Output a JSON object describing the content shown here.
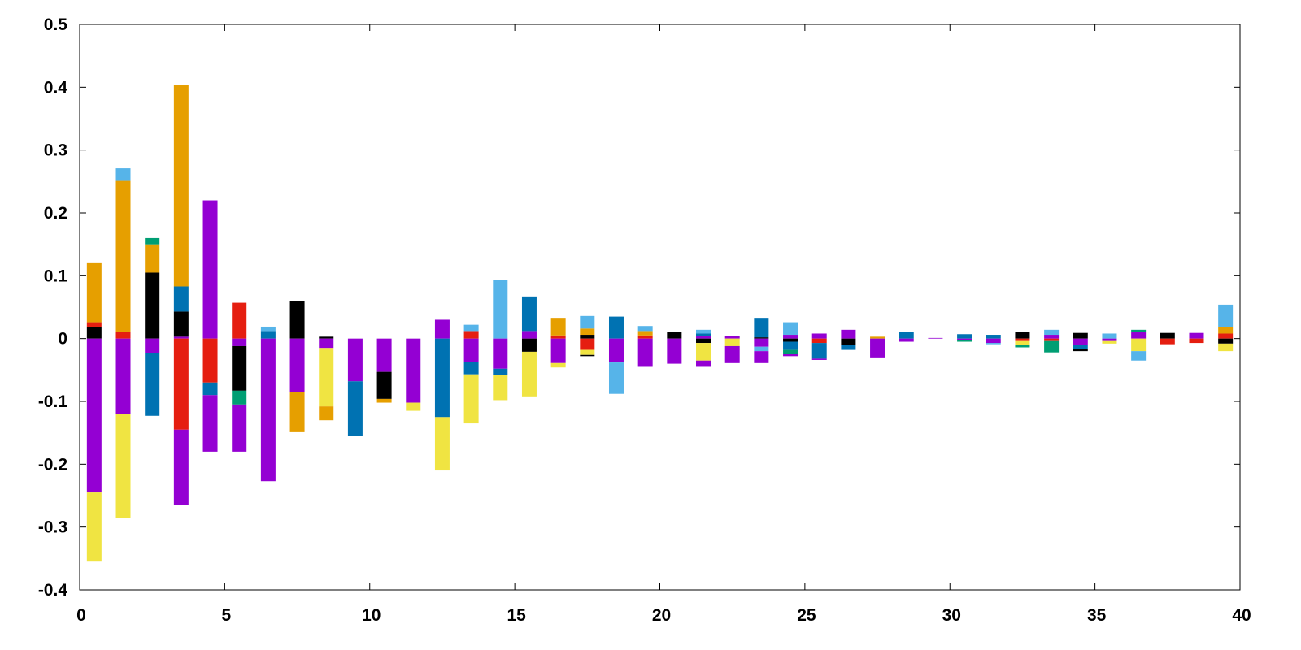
{
  "chart_data": {
    "type": "bar",
    "stacked": true,
    "diverging": true,
    "title": "",
    "xlabel": "",
    "ylabel": "",
    "xlim": [
      0,
      40
    ],
    "ylim": [
      -0.4,
      0.5
    ],
    "xticks": [
      "0",
      "5",
      "10",
      "15",
      "20",
      "25",
      "30",
      "35",
      "40"
    ],
    "yticks": [
      "-0.4",
      "-0.3",
      "-0.2",
      "-0.1",
      "0",
      "0.1",
      "0.2",
      "0.3",
      "0.4",
      "0.5"
    ],
    "grid": false,
    "legend": "none",
    "palette": {
      "purple": "#9400d3",
      "black": "#000000",
      "red": "#e51e10",
      "orange": "#e69f00",
      "blue": "#0072b2",
      "skyblue": "#56b4e9",
      "green": "#009e73",
      "yellow": "#f0e442"
    },
    "bars": [
      {
        "x": 0,
        "pos": [
          [
            "black",
            0.018
          ],
          [
            "red",
            0.008
          ],
          [
            "orange",
            0.094
          ]
        ],
        "neg": [
          [
            "purple",
            -0.245
          ],
          [
            "yellow",
            -0.11
          ]
        ]
      },
      {
        "x": 1,
        "pos": [
          [
            "red",
            0.01
          ],
          [
            "orange",
            0.241
          ],
          [
            "skyblue",
            0.02
          ]
        ],
        "neg": [
          [
            "purple",
            -0.12
          ],
          [
            "yellow",
            -0.165
          ]
        ]
      },
      {
        "x": 2,
        "pos": [
          [
            "black",
            0.105
          ],
          [
            "orange",
            0.045
          ],
          [
            "green",
            0.01
          ]
        ],
        "neg": [
          [
            "purple",
            -0.023
          ],
          [
            "blue",
            -0.1
          ]
        ]
      },
      {
        "x": 3,
        "pos": [
          [
            "purple",
            0.003
          ],
          [
            "black",
            0.04
          ],
          [
            "blue",
            0.04
          ],
          [
            "orange",
            0.32
          ]
        ],
        "neg": [
          [
            "red",
            -0.145
          ],
          [
            "purple",
            -0.12
          ]
        ]
      },
      {
        "x": 4,
        "pos": [
          [
            "purple",
            0.22
          ]
        ],
        "neg": [
          [
            "red",
            -0.07
          ],
          [
            "blue",
            -0.02
          ],
          [
            "purple",
            -0.09
          ]
        ]
      },
      {
        "x": 5,
        "pos": [
          [
            "red",
            0.057
          ]
        ],
        "neg": [
          [
            "purple",
            -0.012
          ],
          [
            "black",
            -0.071
          ],
          [
            "green",
            -0.022
          ],
          [
            "purple",
            -0.075
          ]
        ]
      },
      {
        "x": 6,
        "pos": [
          [
            "blue",
            0.012
          ],
          [
            "skyblue",
            0.007
          ]
        ],
        "neg": [
          [
            "purple",
            -0.227
          ]
        ]
      },
      {
        "x": 7,
        "pos": [
          [
            "black",
            0.06
          ]
        ],
        "neg": [
          [
            "purple",
            -0.085
          ],
          [
            "orange",
            -0.064
          ]
        ]
      },
      {
        "x": 8,
        "pos": [
          [
            "black",
            0.003
          ]
        ],
        "neg": [
          [
            "purple",
            -0.015
          ],
          [
            "yellow",
            -0.093
          ],
          [
            "orange",
            -0.022
          ]
        ]
      },
      {
        "x": 9,
        "pos": [],
        "neg": [
          [
            "purple",
            -0.068
          ],
          [
            "blue",
            -0.087
          ]
        ]
      },
      {
        "x": 10,
        "pos": [],
        "neg": [
          [
            "purple",
            -0.053
          ],
          [
            "black",
            -0.043
          ],
          [
            "orange",
            -0.006
          ]
        ]
      },
      {
        "x": 11,
        "pos": [],
        "neg": [
          [
            "purple",
            -0.102
          ],
          [
            "yellow",
            -0.013
          ]
        ]
      },
      {
        "x": 12,
        "pos": [
          [
            "purple",
            0.03
          ]
        ],
        "neg": [
          [
            "blue",
            -0.125
          ],
          [
            "yellow",
            -0.085
          ]
        ]
      },
      {
        "x": 13,
        "pos": [
          [
            "red",
            0.012
          ],
          [
            "skyblue",
            0.01
          ]
        ],
        "neg": [
          [
            "purple",
            -0.037
          ],
          [
            "blue",
            -0.02
          ],
          [
            "yellow",
            -0.078
          ]
        ]
      },
      {
        "x": 14,
        "pos": [
          [
            "skyblue",
            0.093
          ]
        ],
        "neg": [
          [
            "purple",
            -0.048
          ],
          [
            "blue",
            -0.01
          ],
          [
            "yellow",
            -0.04
          ]
        ]
      },
      {
        "x": 15,
        "pos": [
          [
            "purple",
            0.012
          ],
          [
            "blue",
            0.055
          ]
        ],
        "neg": [
          [
            "black",
            -0.021
          ],
          [
            "yellow",
            -0.071
          ]
        ]
      },
      {
        "x": 16,
        "pos": [
          [
            "red",
            0.005
          ],
          [
            "orange",
            0.028
          ]
        ],
        "neg": [
          [
            "purple",
            -0.039
          ],
          [
            "yellow",
            -0.007
          ]
        ]
      },
      {
        "x": 17,
        "pos": [
          [
            "black",
            0.006
          ],
          [
            "orange",
            0.01
          ],
          [
            "skyblue",
            0.02
          ]
        ],
        "neg": [
          [
            "red",
            -0.018
          ],
          [
            "yellow",
            -0.008
          ],
          [
            "black",
            -0.002
          ]
        ]
      },
      {
        "x": 18,
        "pos": [
          [
            "blue",
            0.035
          ]
        ],
        "neg": [
          [
            "purple",
            -0.038
          ],
          [
            "skyblue",
            -0.05
          ]
        ]
      },
      {
        "x": 19,
        "pos": [
          [
            "red",
            0.005
          ],
          [
            "orange",
            0.007
          ],
          [
            "skyblue",
            0.008
          ]
        ],
        "neg": [
          [
            "purple",
            -0.045
          ]
        ]
      },
      {
        "x": 20,
        "pos": [
          [
            "black",
            0.011
          ]
        ],
        "neg": [
          [
            "purple",
            -0.04
          ]
        ]
      },
      {
        "x": 21,
        "pos": [
          [
            "purple",
            0.004
          ],
          [
            "blue",
            0.004
          ],
          [
            "skyblue",
            0.006
          ]
        ],
        "neg": [
          [
            "black",
            -0.007
          ],
          [
            "yellow",
            -0.028
          ],
          [
            "purple",
            -0.01
          ]
        ]
      },
      {
        "x": 22,
        "pos": [
          [
            "purple",
            0.004
          ]
        ],
        "neg": [
          [
            "yellow",
            -0.012
          ],
          [
            "purple",
            -0.027
          ]
        ]
      },
      {
        "x": 23,
        "pos": [
          [
            "black",
            0.002
          ],
          [
            "blue",
            0.031
          ]
        ],
        "neg": [
          [
            "purple",
            -0.013
          ],
          [
            "skyblue",
            -0.007
          ],
          [
            "purple",
            -0.019
          ]
        ]
      },
      {
        "x": 24,
        "pos": [
          [
            "purple",
            0.006
          ],
          [
            "skyblue",
            0.02
          ]
        ],
        "neg": [
          [
            "black",
            -0.005
          ],
          [
            "blue",
            -0.013
          ],
          [
            "green",
            -0.007
          ],
          [
            "purple",
            -0.003
          ]
        ]
      },
      {
        "x": 25,
        "pos": [
          [
            "purple",
            0.008
          ]
        ],
        "neg": [
          [
            "red",
            -0.007
          ],
          [
            "blue",
            -0.025
          ],
          [
            "purple",
            -0.002
          ]
        ]
      },
      {
        "x": 26,
        "pos": [
          [
            "purple",
            0.014
          ]
        ],
        "neg": [
          [
            "black",
            -0.01
          ],
          [
            "blue",
            -0.008
          ]
        ]
      },
      {
        "x": 27,
        "pos": [
          [
            "orange",
            0.003
          ]
        ],
        "neg": [
          [
            "purple",
            -0.03
          ]
        ]
      },
      {
        "x": 28,
        "pos": [
          [
            "blue",
            0.01
          ]
        ],
        "neg": [
          [
            "purple",
            -0.005
          ]
        ]
      },
      {
        "x": 29,
        "pos": [
          [
            "purple",
            0.001
          ]
        ],
        "neg": []
      },
      {
        "x": 30,
        "pos": [
          [
            "blue",
            0.007
          ]
        ],
        "neg": [
          [
            "purple",
            -0.002
          ],
          [
            "green",
            -0.003
          ]
        ]
      },
      {
        "x": 31,
        "pos": [
          [
            "blue",
            0.006
          ]
        ],
        "neg": [
          [
            "purple",
            -0.007
          ],
          [
            "skyblue",
            -0.002
          ]
        ]
      },
      {
        "x": 32,
        "pos": [
          [
            "black",
            0.01
          ]
        ],
        "neg": [
          [
            "red",
            -0.004
          ],
          [
            "yellow",
            -0.006
          ],
          [
            "green",
            -0.004
          ]
        ]
      },
      {
        "x": 33,
        "pos": [
          [
            "purple",
            0.006
          ],
          [
            "skyblue",
            0.008
          ]
        ],
        "neg": [
          [
            "red",
            -0.004
          ],
          [
            "green",
            -0.018
          ]
        ]
      },
      {
        "x": 34,
        "pos": [
          [
            "black",
            0.009
          ]
        ],
        "neg": [
          [
            "purple",
            -0.01
          ],
          [
            "blue",
            -0.007
          ],
          [
            "black",
            -0.003
          ]
        ]
      },
      {
        "x": 35,
        "pos": [
          [
            "skyblue",
            0.008
          ]
        ],
        "neg": [
          [
            "purple",
            -0.004
          ],
          [
            "yellow",
            -0.004
          ]
        ]
      },
      {
        "x": 36,
        "pos": [
          [
            "purple",
            0.01
          ],
          [
            "green",
            0.004
          ]
        ],
        "neg": [
          [
            "yellow",
            -0.02
          ],
          [
            "skyblue",
            -0.015
          ]
        ]
      },
      {
        "x": 37,
        "pos": [
          [
            "black",
            0.009
          ]
        ],
        "neg": [
          [
            "red",
            -0.009
          ]
        ]
      },
      {
        "x": 38,
        "pos": [
          [
            "purple",
            0.009
          ]
        ],
        "neg": [
          [
            "red",
            -0.007
          ]
        ]
      },
      {
        "x": 39,
        "pos": [
          [
            "red",
            0.008
          ],
          [
            "orange",
            0.01
          ],
          [
            "skyblue",
            0.036
          ]
        ],
        "neg": [
          [
            "black",
            -0.008
          ],
          [
            "yellow",
            -0.012
          ]
        ]
      }
    ]
  }
}
